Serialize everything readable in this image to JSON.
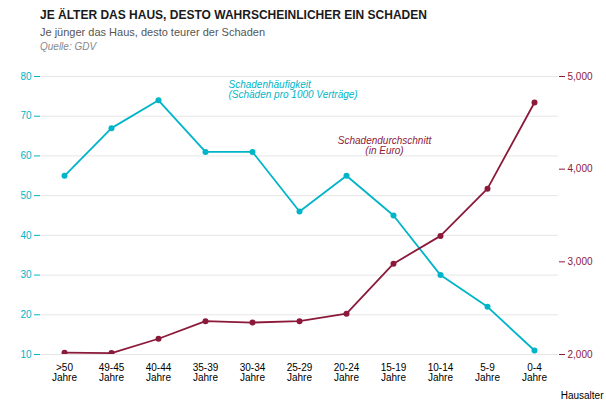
{
  "chart_data": {
    "type": "line",
    "title": "JE ÄLTER DAS HAUS, DESTO WAHRSCHEINLICHER EIN SCHADEN",
    "subtitle": "Je jünger das Haus, desto teurer der Schaden",
    "source": "Quelle: GDV",
    "xlabel": "Hausalter",
    "categories": [
      ">50\nJahre",
      "49-45\nJahre",
      "40-44\nJahre",
      "35-39\nJahre",
      "30-34\nJahre",
      "25-29\nJahre",
      "20-24\nJahre",
      "15-19\nJahre",
      "10-14\nJahre",
      "5-9\nJahre",
      "0-4\nJahre"
    ],
    "series": [
      {
        "name": "Schadenhäufigkeit\n(Schäden pro 1000 Verträge)",
        "color": "#00B5C8",
        "marker": "o",
        "values": [
          55,
          67,
          74,
          61,
          61,
          46,
          55,
          45,
          30,
          22,
          11
        ]
      },
      {
        "name": "Schadendurchschnitt\n(in Euro)",
        "color": "#8B1A3A",
        "marker": "o",
        "axis": "y2",
        "values": [
          2020,
          2015,
          2170,
          2360,
          2345,
          2360,
          2440,
          2980,
          3280,
          3790,
          4720
        ]
      }
    ],
    "ylim": [
      10,
      80
    ],
    "yticks": [
      10,
      20,
      30,
      40,
      50,
      60,
      70,
      80
    ],
    "y2lim": [
      2000,
      5000
    ],
    "y2ticks": [
      2000,
      3000,
      4000,
      5000
    ],
    "grid": true
  }
}
